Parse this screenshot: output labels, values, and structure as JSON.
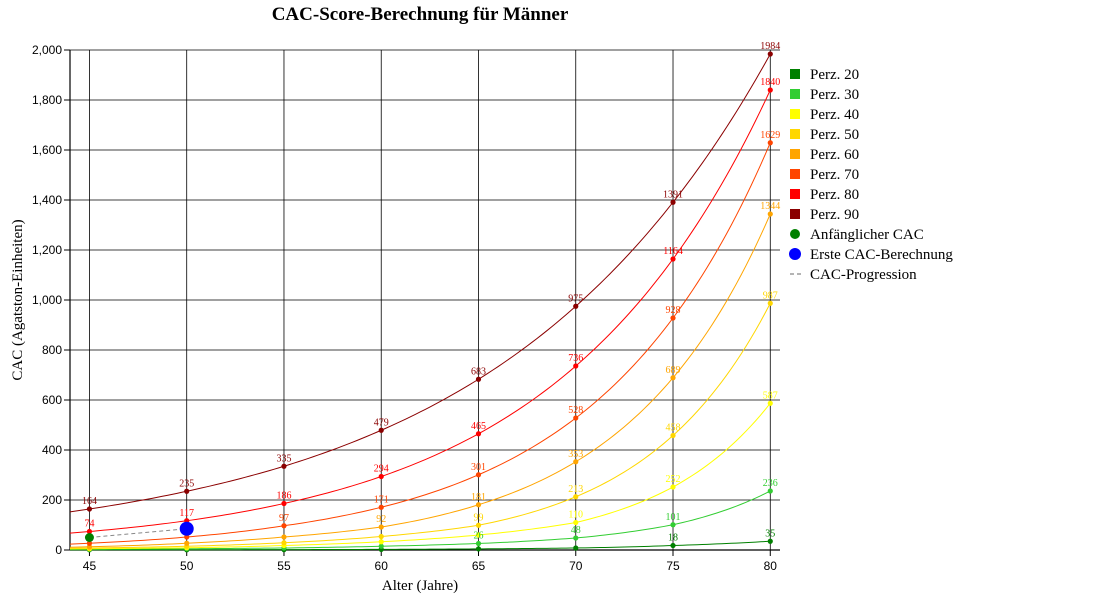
{
  "chart_data": {
    "type": "line",
    "title": "CAC-Score-Berechnung für Männer",
    "xlabel": "Alter (Jahre)",
    "ylabel": "CAC (Agatston-Einheiten)",
    "xlim": [
      44,
      80.5
    ],
    "ylim": [
      0,
      2000
    ],
    "x_ticks": [
      "45",
      "50",
      "55",
      "60",
      "65",
      "70",
      "75",
      "80"
    ],
    "y_ticks": [
      "0",
      "200",
      "400",
      "600",
      "800",
      "1,000",
      "1,200",
      "1,400",
      "1,600",
      "1,800",
      "2,000"
    ],
    "grid": true,
    "legend_position": "right",
    "x": [
      45,
      50,
      55,
      60,
      65,
      70,
      75,
      80
    ],
    "series": [
      {
        "name": "Perz. 20",
        "color": "#008000",
        "values": [
          0.7,
          1,
          1.5,
          2.5,
          4.5,
          8,
          18,
          35
        ],
        "labels": [
          "",
          "",
          "",
          "",
          "",
          "",
          "18",
          "35"
        ]
      },
      {
        "name": "Perz. 30",
        "color": "#32cd32",
        "values": [
          3,
          5,
          8,
          15,
          26,
          48,
          101,
          236
        ],
        "labels": [
          "",
          "",
          "",
          "",
          "26",
          "48",
          "101",
          "236"
        ]
      },
      {
        "name": "Perz. 40",
        "color": "#ffff00",
        "values": [
          5,
          9,
          18,
          33,
          60,
          110,
          252,
          587
        ],
        "labels": [
          "",
          "",
          "",
          "",
          "",
          "110",
          "252",
          "587"
        ]
      },
      {
        "name": "Perz. 50",
        "color": "#ffd700",
        "values": [
          8,
          15,
          29,
          54,
          99,
          213,
          458,
          987
        ],
        "labels": [
          "",
          "",
          "",
          "",
          "99",
          "213",
          "458",
          "987"
        ]
      },
      {
        "name": "Perz. 60",
        "color": "#ffa500",
        "values": [
          13,
          27,
          52,
          92,
          181,
          353,
          689,
          1344
        ],
        "labels": [
          "",
          "",
          "",
          "92",
          "181",
          "353",
          "689",
          "1344"
        ]
      },
      {
        "name": "Perz. 70",
        "color": "#ff4500",
        "values": [
          27,
          52,
          97,
          171,
          301,
          528,
          928,
          1629
        ],
        "labels": [
          "",
          "",
          "97",
          "171",
          "301",
          "528",
          "928",
          "1629"
        ]
      },
      {
        "name": "Perz. 80",
        "color": "#ff0000",
        "values": [
          74,
          117,
          186,
          294,
          465,
          736,
          1164,
          1840
        ],
        "labels": [
          "74",
          "117",
          "186",
          "294",
          "465",
          "736",
          "1164",
          "1840"
        ]
      },
      {
        "name": "Perz. 90",
        "color": "#8b0000",
        "values": [
          164,
          235,
          335,
          479,
          683,
          975,
          1391,
          1984
        ],
        "labels": [
          "164",
          "235",
          "335",
          "479",
          "683",
          "975",
          "1391",
          "1984"
        ]
      }
    ],
    "initial_cac": {
      "name": "Anfänglicher CAC",
      "color": "#008000",
      "x": 45,
      "y": 50
    },
    "first_calc": {
      "name": "Erste CAC-Berechnung",
      "color": "#0000ff",
      "x": 50,
      "y": 85
    },
    "progression": {
      "name": "CAC-Progression",
      "color": "#888888"
    }
  }
}
